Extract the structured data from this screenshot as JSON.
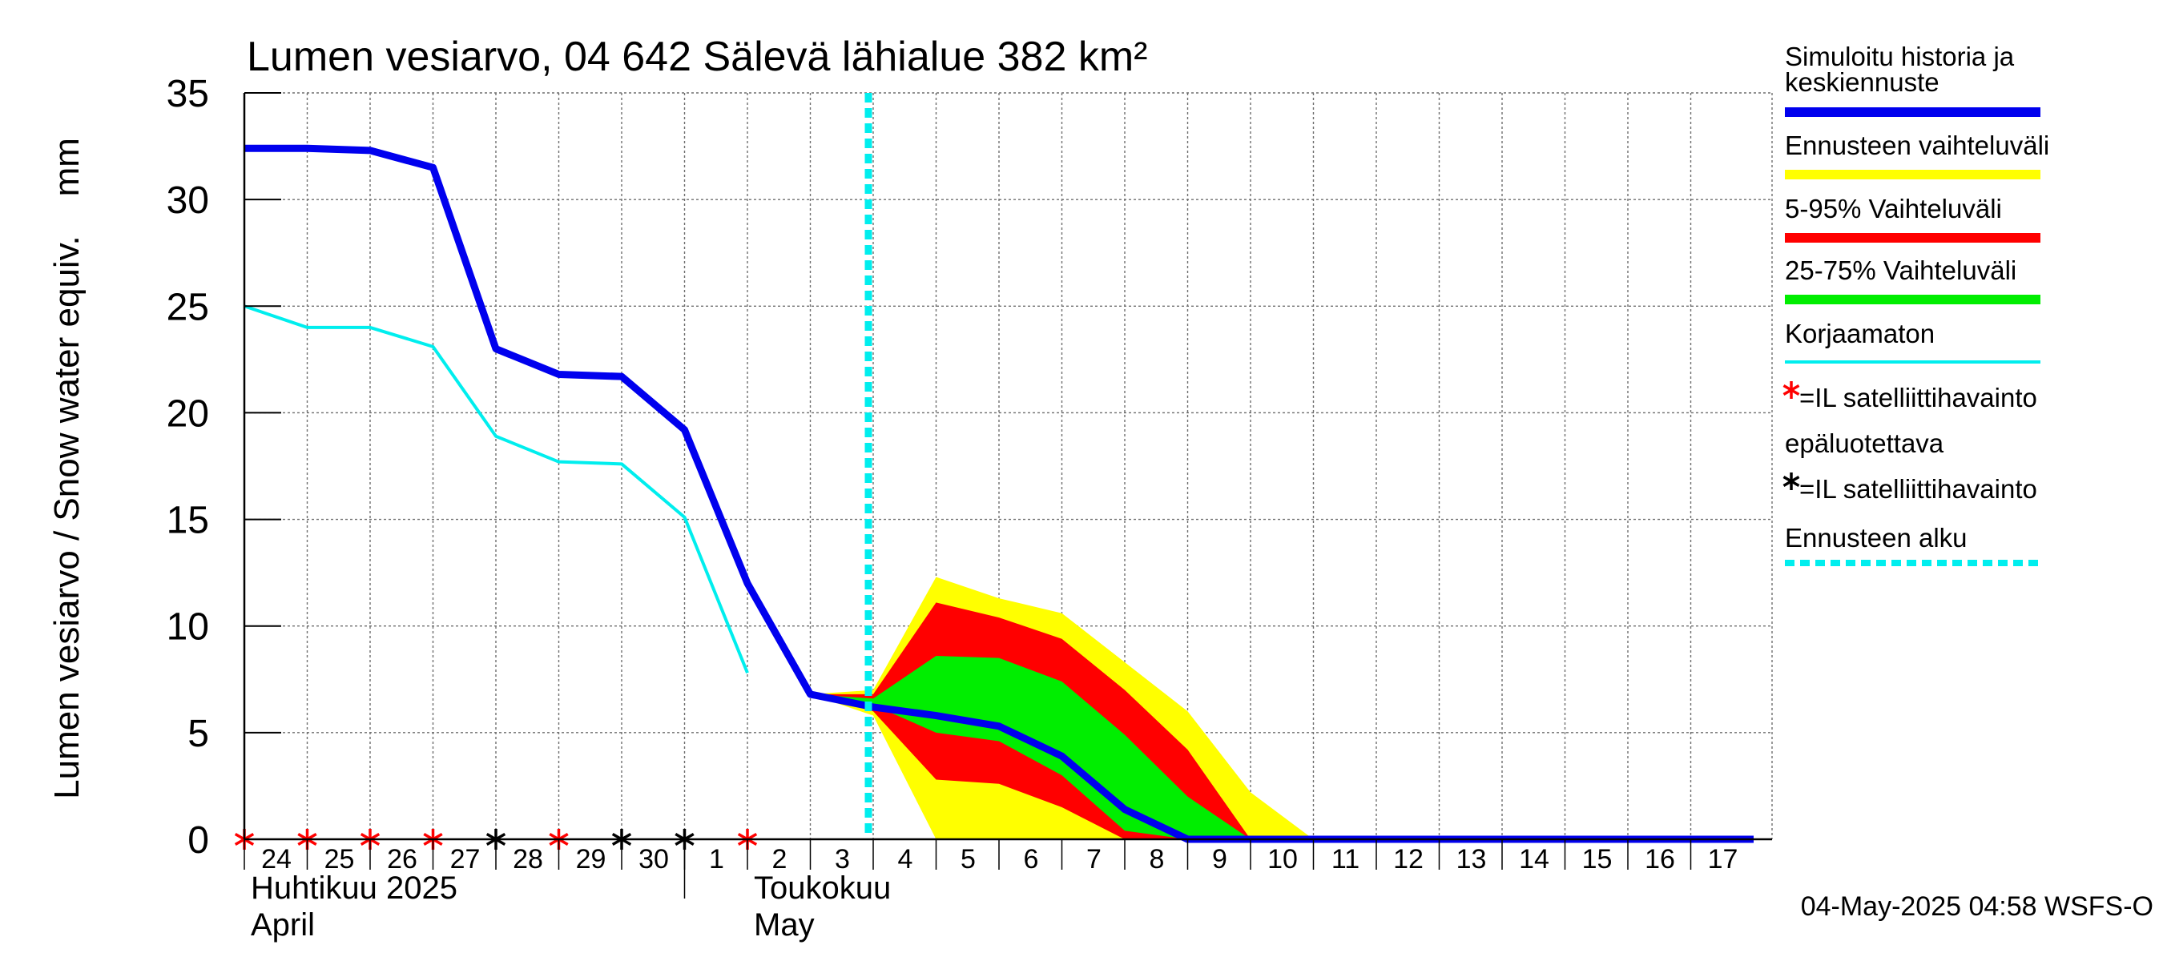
{
  "chart_data": {
    "type": "line",
    "title": "Lumen vesiarvo, 04 642 Sälevä lähialue 382 km²",
    "ylabel": "Lumen vesiarvo / Snow water equiv.    mm",
    "ylim": [
      0,
      35
    ],
    "yticks": [
      "0",
      "5",
      "10",
      "15",
      "20",
      "25",
      "30",
      "35"
    ],
    "grid": true,
    "legend_placement": "right",
    "x_day_labels": [
      "24",
      "25",
      "26",
      "27",
      "28",
      "29",
      "30",
      "1",
      "2",
      "3",
      "4",
      "5",
      "6",
      "7",
      "8",
      "9",
      "10",
      "11",
      "12",
      "13",
      "14",
      "15",
      "16",
      "17"
    ],
    "x_month_labels": [
      {
        "fi": "Huhtikuu  2025",
        "en": "April",
        "at_day": "24"
      },
      {
        "fi": "Toukokuu",
        "en": "May",
        "at_day": "2"
      }
    ],
    "forecast_start": "2025-05-04",
    "series": [
      {
        "name": "Simuloitu historia ja keskiennuste",
        "color": "#0000ee",
        "x": [
          "2025-04-24",
          "2025-04-25",
          "2025-04-26",
          "2025-04-27",
          "2025-04-28",
          "2025-04-29",
          "2025-04-30",
          "2025-05-01",
          "2025-05-02",
          "2025-05-03",
          "2025-05-04",
          "2025-05-05",
          "2025-05-06",
          "2025-05-07",
          "2025-05-08",
          "2025-05-09",
          "2025-05-10",
          "2025-05-11",
          "2025-05-12",
          "2025-05-13",
          "2025-05-14",
          "2025-05-15",
          "2025-05-16",
          "2025-05-17",
          "2025-05-18"
        ],
        "values": [
          32.4,
          32.4,
          32.3,
          31.5,
          23.0,
          21.8,
          21.7,
          19.2,
          12.0,
          6.8,
          6.2,
          5.8,
          5.3,
          3.9,
          1.4,
          0,
          0,
          0,
          0,
          0,
          0,
          0,
          0,
          0,
          0
        ]
      },
      {
        "name": "Korjaamaton",
        "color": "#00eeee",
        "x": [
          "2025-04-24",
          "2025-04-25",
          "2025-04-26",
          "2025-04-27",
          "2025-04-28",
          "2025-04-29",
          "2025-04-30",
          "2025-05-01",
          "2025-05-02"
        ],
        "values": [
          25.0,
          24.0,
          24.0,
          23.1,
          18.9,
          17.7,
          17.6,
          15.1,
          7.8
        ]
      }
    ],
    "bands": [
      {
        "name": "Ennusteen vaihteluväli",
        "color": "#ffff00",
        "x": [
          "2025-05-03",
          "2025-05-04",
          "2025-05-05",
          "2025-05-06",
          "2025-05-07",
          "2025-05-08",
          "2025-05-09",
          "2025-05-10",
          "2025-05-11"
        ],
        "upper": [
          6.8,
          7.0,
          12.3,
          11.3,
          10.6,
          8.3,
          6.0,
          2.2,
          0
        ],
        "lower": [
          6.8,
          5.8,
          0,
          0,
          0,
          0,
          0,
          0,
          0
        ]
      },
      {
        "name": "5-95% Vaihteluväli",
        "color": "#ff0000",
        "x": [
          "2025-05-03",
          "2025-05-04",
          "2025-05-05",
          "2025-05-06",
          "2025-05-07",
          "2025-05-08",
          "2025-05-09",
          "2025-05-10"
        ],
        "upper": [
          6.8,
          6.8,
          11.1,
          10.4,
          9.4,
          7.0,
          4.2,
          0
        ],
        "lower": [
          6.8,
          6.0,
          2.8,
          2.6,
          1.5,
          0,
          0,
          0
        ]
      },
      {
        "name": "25-75% Vaihteluväli",
        "color": "#00ee00",
        "x": [
          "2025-05-03",
          "2025-05-04",
          "2025-05-05",
          "2025-05-06",
          "2025-05-07",
          "2025-05-08",
          "2025-05-09",
          "2025-05-10"
        ],
        "upper": [
          6.8,
          6.6,
          8.6,
          8.5,
          7.4,
          4.9,
          2.0,
          0
        ],
        "lower": [
          6.8,
          6.3,
          5.0,
          4.6,
          3.0,
          0.4,
          0,
          0
        ]
      }
    ],
    "satellite_markers": [
      {
        "date": "2025-04-24",
        "value": 0,
        "kind": "unreliable"
      },
      {
        "date": "2025-04-25",
        "value": 0,
        "kind": "unreliable"
      },
      {
        "date": "2025-04-26",
        "value": 0,
        "kind": "unreliable"
      },
      {
        "date": "2025-04-27",
        "value": 0,
        "kind": "unreliable"
      },
      {
        "date": "2025-04-28",
        "value": 0,
        "kind": "observation"
      },
      {
        "date": "2025-04-29",
        "value": 0,
        "kind": "unreliable"
      },
      {
        "date": "2025-04-30",
        "value": 0,
        "kind": "observation"
      },
      {
        "date": "2025-05-01",
        "value": 0,
        "kind": "observation"
      },
      {
        "date": "2025-05-02",
        "value": 0,
        "kind": "unreliable"
      }
    ],
    "legend": [
      {
        "key": "sim",
        "label_lines": [
          "Simuloitu historia ja",
          "keskiennuste"
        ],
        "color": "#0000ee",
        "symbol": "line-thick"
      },
      {
        "key": "range",
        "label_lines": [
          "Ennusteen vaihteluväli"
        ],
        "color": "#ffff00",
        "symbol": "line-thick"
      },
      {
        "key": "p595",
        "label_lines": [
          "5-95% Vaihteluväli"
        ],
        "color": "#ff0000",
        "symbol": "line-thick"
      },
      {
        "key": "p2575",
        "label_lines": [
          "25-75% Vaihteluväli"
        ],
        "color": "#00ee00",
        "symbol": "line-thick"
      },
      {
        "key": "raw",
        "label_lines": [
          "Korjaamaton"
        ],
        "color": "#00eeee",
        "symbol": "line-thin"
      },
      {
        "key": "sat-unrel",
        "label_lines": [
          "=IL satelliittihavainto",
          "epäluotettava"
        ],
        "color": "#ff0000",
        "symbol": "star"
      },
      {
        "key": "sat-obs",
        "label_lines": [
          "=IL satelliittihavainto"
        ],
        "color": "#000000",
        "symbol": "star"
      },
      {
        "key": "fstart",
        "label_lines": [
          "Ennusteen alku"
        ],
        "color": "#00eeee",
        "symbol": "dashed"
      }
    ],
    "timestamp": "04-May-2025 04:58 WSFS-O"
  }
}
